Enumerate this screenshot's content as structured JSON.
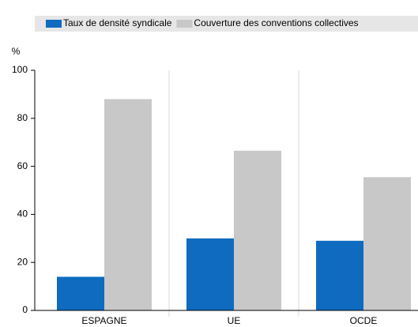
{
  "chart_data": {
    "type": "bar",
    "y_label": "%",
    "categories": [
      "ESPAGNE",
      "UE",
      "OCDE"
    ],
    "series": [
      {
        "name": "Taux de densité syndicale",
        "color": "#0e6bbf",
        "values": [
          14,
          30,
          29
        ]
      },
      {
        "name": "Couverture des conventions collectives",
        "color": "#c8c8c8",
        "values": [
          88,
          66.5,
          55.5
        ]
      }
    ],
    "ylim": [
      0,
      100
    ],
    "yticks": [
      0,
      20,
      40,
      60,
      80,
      100
    ],
    "legend": "top"
  }
}
